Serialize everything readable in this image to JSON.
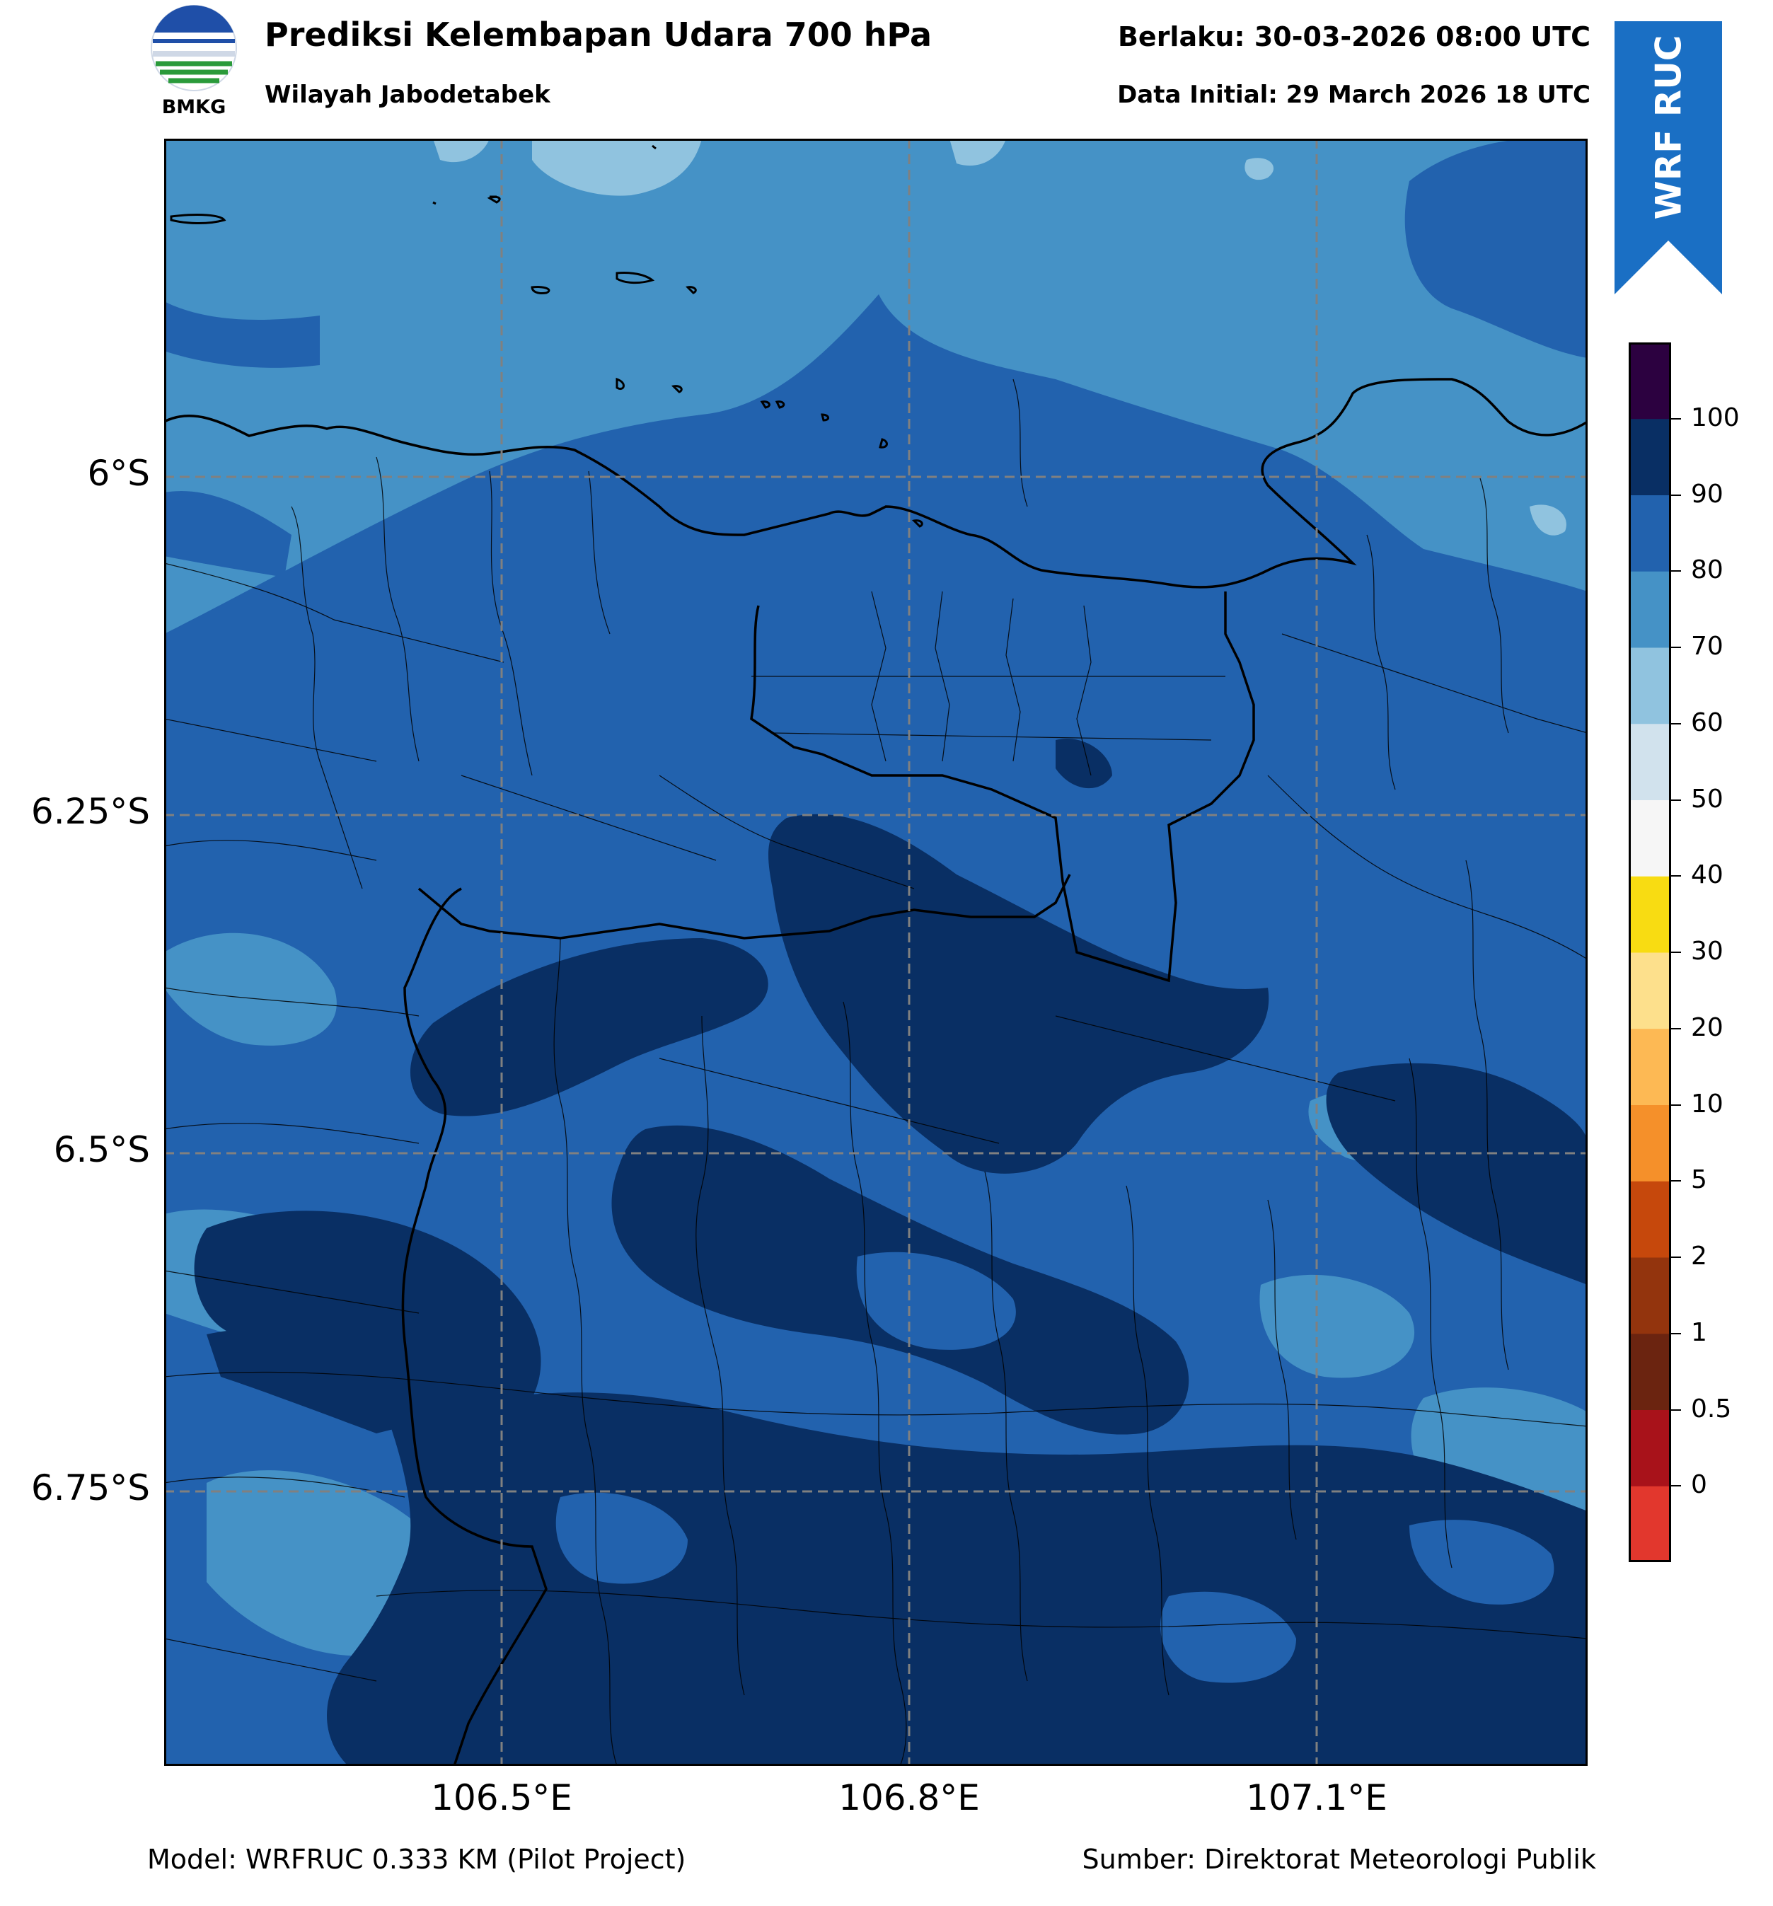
{
  "header": {
    "title": "Prediksi Kelembapan Udara 700 hPa",
    "subtitle": "Wilayah Jabodetabek",
    "valid_time": "Berlaku: 30-03-2026 08:00 UTC",
    "initial_time": "Data Initial: 29 March 2026 18 UTC"
  },
  "logo": {
    "text": "BMKG",
    "icon": "bmkg-logo-icon"
  },
  "ribbon": {
    "text": "WRF RUC",
    "color": "#1a6fc4"
  },
  "map": {
    "lat_labels": [
      "6°S",
      "6.25°S",
      "6.5°S",
      "6.75°S"
    ],
    "lon_labels": [
      "106.5°E",
      "106.8°E",
      "107.1°E"
    ],
    "gridlines": true,
    "field": "relative humidity 700 hPa"
  },
  "colorbar": {
    "levels": [
      "0",
      "0.5",
      "1",
      "2",
      "5",
      "10",
      "20",
      "30",
      "40",
      "50",
      "60",
      "70",
      "80",
      "90",
      "100"
    ],
    "colors": [
      "#e2372d",
      "#a8121a",
      "#6b2410",
      "#93340d",
      "#c6480c",
      "#f5902a",
      "#fdb954",
      "#fde08c",
      "#f8dc12",
      "#f6f6f6",
      "#d1e2ed",
      "#90c3df",
      "#4592c6",
      "#2262ae",
      "#092f64",
      "#2c0140"
    ]
  },
  "footer": {
    "model": "Model: WRFRUC 0.333 KM (Pilot Project)",
    "source": "Sumber: Direktorat Meteorologi Publik"
  }
}
